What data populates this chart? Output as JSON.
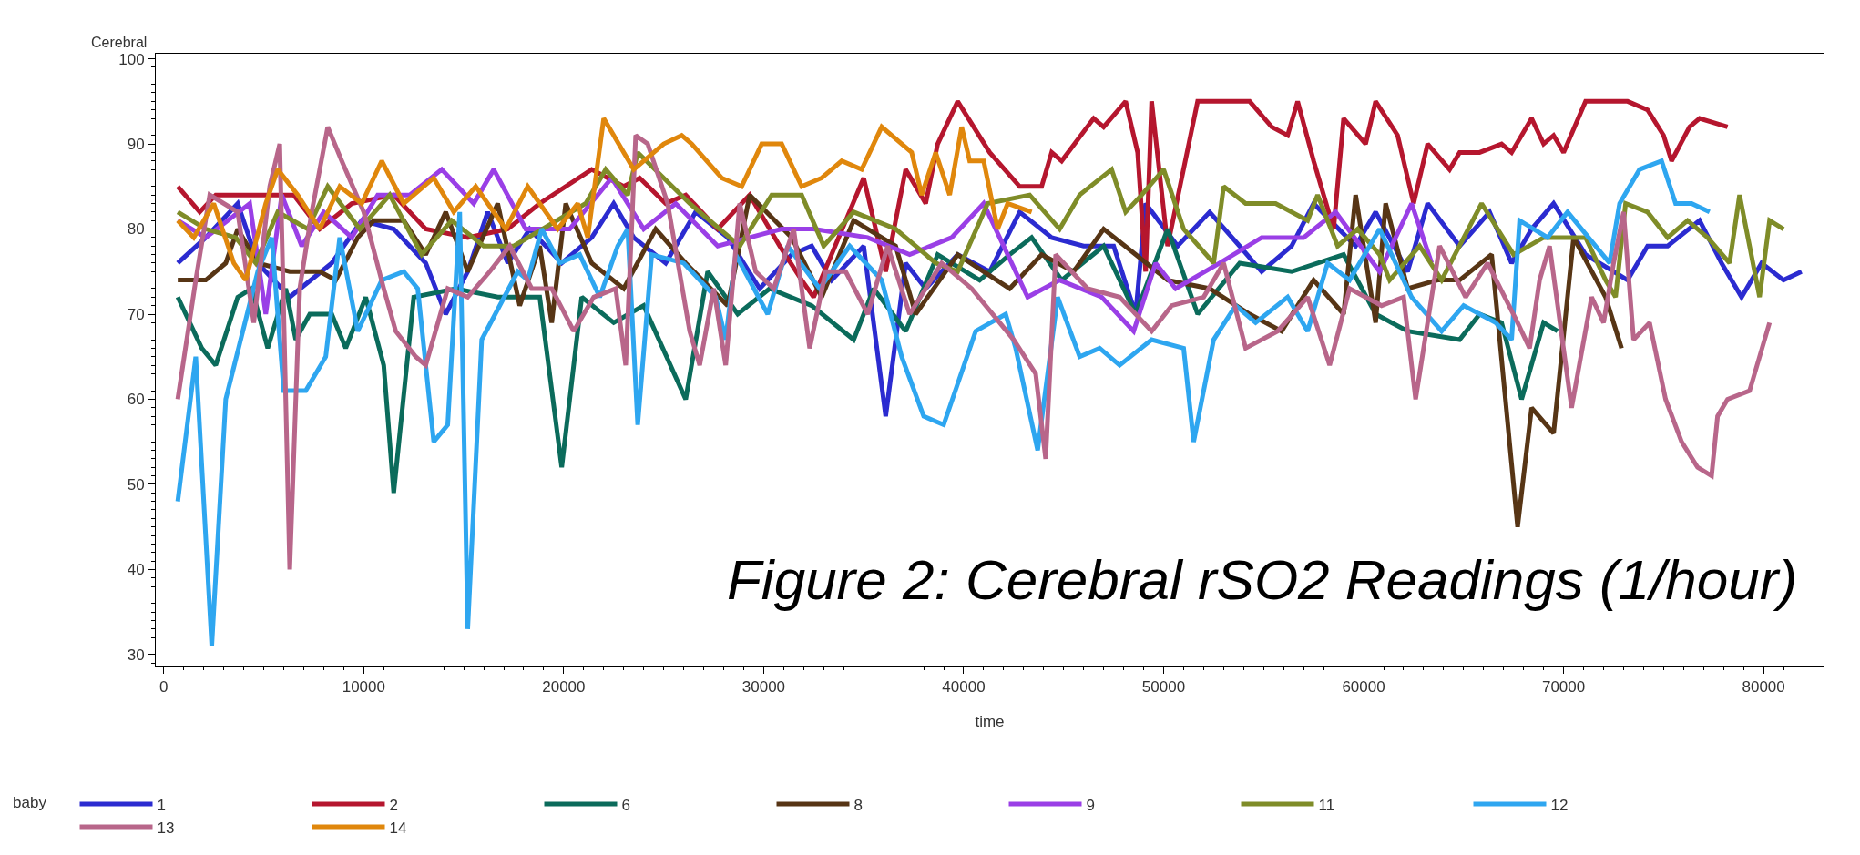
{
  "chart_data": {
    "type": "line",
    "xlabel": "time",
    "ylabel": "Cerebral",
    "legend_title": "baby",
    "legend": "bottom",
    "marker": "none",
    "line_style": "solid",
    "annotations": [
      "Figure 2: Cerebral rSO2 Readings (1/hour)"
    ],
    "xlim": [
      -400,
      83000
    ],
    "xticks": [
      0,
      10000,
      20000,
      30000,
      40000,
      50000,
      60000,
      70000,
      80000
    ],
    "ylim": [
      28.7,
      100.6
    ],
    "yticks": [
      30,
      40,
      50,
      60,
      70,
      80,
      90,
      100
    ],
    "series": [
      {
        "name": "1",
        "color": "#2b2bd0",
        "x": [
          700,
          2100,
          3700,
          4700,
          6300,
          8400,
          9900,
          11500,
          13100,
          14100,
          15200,
          16200,
          17200,
          18300,
          19900,
          21400,
          22500,
          23500,
          25100,
          26600,
          28200,
          29800,
          31400,
          32400,
          33400,
          35000,
          36100,
          37100,
          38100,
          39700,
          41300,
          42800,
          44400,
          46000,
          47500,
          48600,
          49100,
          50700,
          52300,
          53800,
          54900,
          56400,
          57500,
          59600,
          60600,
          62200,
          63200,
          64800,
          66300,
          67400,
          68400,
          69500,
          71100,
          73200,
          74200,
          75200,
          76800,
          77900,
          78900,
          79900,
          81000,
          81900
        ],
        "values": [
          76,
          79,
          83,
          76,
          72,
          76,
          81,
          80,
          76,
          70,
          75,
          82,
          76,
          80,
          76,
          79,
          83,
          79,
          76,
          82,
          79,
          73,
          77,
          78,
          74,
          78,
          58,
          76,
          73,
          77,
          75,
          82,
          79,
          78,
          78,
          70,
          83,
          78,
          82,
          78,
          75,
          78,
          83,
          78,
          82,
          75,
          83,
          78,
          82,
          76,
          80,
          83,
          77,
          74,
          78,
          78,
          81,
          76,
          72,
          76,
          74,
          75
        ]
      },
      {
        "name": "2",
        "color": "#b5162e",
        "x": [
          700,
          1800,
          2600,
          6500,
          7800,
          9400,
          11500,
          13100,
          15200,
          17200,
          18800,
          21400,
          23000,
          23800,
          25100,
          26100,
          27700,
          29300,
          30800,
          31900,
          32500,
          35000,
          36100,
          37100,
          38100,
          38700,
          39700,
          41300,
          42800,
          43900,
          44400,
          44900,
          46500,
          47000,
          48100,
          48700,
          49100,
          49400,
          50200,
          51700,
          54300,
          55400,
          56200,
          56700,
          57500,
          58500,
          59000,
          60100,
          60600,
          61700,
          62500,
          63200,
          64300,
          64800,
          65800,
          66900,
          67400,
          68400,
          69000,
          69500,
          70000,
          71100,
          73200,
          74200,
          75000,
          75400,
          76300,
          76800,
          78200
        ],
        "values": [
          85,
          82,
          84,
          84,
          80,
          83,
          84,
          80,
          79,
          80,
          83,
          87,
          85,
          86,
          83,
          84,
          80,
          84,
          78,
          74,
          72,
          86,
          75,
          87,
          83,
          90,
          95,
          89,
          85,
          85,
          89,
          88,
          93,
          92,
          95,
          89,
          75,
          95,
          78,
          95,
          95,
          92,
          91,
          95,
          88,
          80,
          93,
          90,
          95,
          91,
          83,
          90,
          87,
          89,
          89,
          90,
          89,
          93,
          90,
          91,
          89,
          95,
          95,
          94,
          91,
          88,
          92,
          93,
          92
        ]
      },
      {
        "name": "6",
        "color": "#0b6b5b",
        "x": [
          700,
          1900,
          2600,
          3700,
          4400,
          5200,
          6100,
          6600,
          7300,
          8400,
          9100,
          10100,
          11000,
          11500,
          12500,
          14600,
          16700,
          18800,
          19900,
          20900,
          22500,
          24000,
          26100,
          27200,
          28700,
          30300,
          32400,
          34500,
          35500,
          37100,
          38700,
          40800,
          42300,
          43400,
          44900,
          47000,
          48600,
          50200,
          51700,
          53800,
          56400,
          59000,
          60600,
          62200,
          64800,
          65800,
          66900,
          67900,
          69000,
          69700
        ],
        "values": [
          72,
          66,
          64,
          72,
          73,
          66,
          73,
          67,
          70,
          70,
          66,
          72,
          64,
          49,
          72,
          73,
          72,
          72,
          52,
          72,
          69,
          71,
          60,
          75,
          70,
          73,
          71,
          67,
          73,
          68,
          77,
          74,
          77,
          79,
          74,
          78,
          70,
          80,
          70,
          76,
          75,
          77,
          70,
          68,
          67,
          70,
          69,
          60,
          69,
          68
        ]
      },
      {
        "name": "8",
        "color": "#573515",
        "x": [
          700,
          2100,
          3100,
          3700,
          4700,
          6300,
          7800,
          8600,
          9700,
          10500,
          12000,
          13100,
          14100,
          15200,
          16700,
          17800,
          18800,
          19400,
          20100,
          21400,
          23000,
          24600,
          26100,
          28200,
          29300,
          31400,
          32900,
          34500,
          36600,
          37600,
          39700,
          42300,
          43900,
          45500,
          47000,
          48600,
          50200,
          52300,
          54300,
          55900,
          57500,
          59000,
          59600,
          60600,
          61100,
          62200,
          63700,
          64800,
          66400,
          67700,
          68400,
          69500,
          70500,
          72100,
          72900
        ],
        "values": [
          74,
          74,
          76,
          80,
          76,
          75,
          75,
          74,
          79,
          81,
          81,
          77,
          82,
          75,
          83,
          71,
          78,
          69,
          83,
          76,
          73,
          80,
          76,
          71,
          84,
          79,
          72,
          81,
          78,
          70,
          77,
          73,
          77,
          75,
          80,
          77,
          74,
          73,
          70,
          68,
          74,
          70,
          84,
          69,
          83,
          73,
          74,
          74,
          77,
          45,
          59,
          56,
          79,
          72,
          66
        ]
      },
      {
        "name": "9",
        "color": "#9a3fe6",
        "x": [
          700,
          2100,
          4300,
          5100,
          5900,
          6900,
          8000,
          9400,
          10700,
          12300,
          13900,
          15500,
          16500,
          18100,
          20300,
          22400,
          24000,
          25600,
          27700,
          29300,
          30900,
          32500,
          35200,
          37300,
          39400,
          41000,
          43200,
          44800,
          46900,
          48500,
          49600,
          50600,
          52800,
          54900,
          57000,
          58600,
          60800,
          62400,
          63400
        ],
        "values": [
          81,
          79,
          83,
          70,
          84,
          78,
          82,
          79,
          84,
          84,
          87,
          83,
          87,
          80,
          80,
          86,
          80,
          83,
          78,
          79,
          80,
          80,
          79,
          77,
          79,
          83,
          72,
          74,
          72,
          68,
          76,
          73,
          76,
          79,
          79,
          82,
          75,
          83,
          76
        ]
      },
      {
        "name": "11",
        "color": "#7f8c28",
        "x": [
          700,
          2100,
          3600,
          4600,
          5700,
          7200,
          8200,
          9800,
          11300,
          12900,
          14400,
          16000,
          17500,
          21100,
          22100,
          23200,
          23700,
          26300,
          28800,
          30400,
          31900,
          33000,
          34500,
          36600,
          38600,
          39700,
          41200,
          43300,
          44800,
          45800,
          47400,
          48100,
          48900,
          50000,
          51000,
          52500,
          53000,
          54100,
          55600,
          57200,
          57700,
          58700,
          59700,
          60800,
          61300,
          62800,
          63900,
          65900,
          67500,
          69000,
          71100,
          72100,
          72600,
          73100,
          74200,
          75200,
          76200,
          77200,
          78300,
          78800,
          79800,
          80300,
          81000
        ],
        "values": [
          82,
          80,
          79,
          76,
          82,
          80,
          85,
          80,
          84,
          77,
          81,
          78,
          78,
          83,
          87,
          84,
          89,
          83,
          78,
          84,
          84,
          78,
          82,
          80,
          76,
          75,
          83,
          84,
          80,
          84,
          87,
          82,
          84,
          87,
          80,
          76,
          85,
          83,
          83,
          81,
          84,
          78,
          80,
          77,
          74,
          78,
          74,
          83,
          77,
          79,
          79,
          74,
          72,
          83,
          82,
          79,
          81,
          79,
          76,
          84,
          72,
          81,
          80
        ]
      },
      {
        "name": "12",
        "color": "#2ea6f0",
        "x": [
          700,
          1600,
          2400,
          3100,
          4700,
          5400,
          6000,
          7100,
          8100,
          8800,
          9700,
          10900,
          12000,
          12700,
          13500,
          14200,
          14800,
          15200,
          15900,
          17700,
          18200,
          18900,
          19800,
          20800,
          21800,
          22700,
          23200,
          23700,
          24400,
          26000,
          27600,
          28100,
          28600,
          30200,
          31200,
          32800,
          34300,
          35900,
          36900,
          38000,
          39000,
          40600,
          42100,
          42600,
          43700,
          44700,
          45800,
          46800,
          47800,
          49400,
          51000,
          51500,
          52500,
          53600,
          54600,
          56200,
          57200,
          58200,
          59300,
          60800,
          62400,
          63900,
          65000,
          66600,
          67400,
          67800,
          69200,
          70200,
          72300,
          72800,
          73800,
          74900,
          75600,
          76400,
          77300
        ],
        "values": [
          48,
          65,
          31,
          60,
          75,
          79,
          61,
          61,
          65,
          79,
          68,
          74,
          75,
          73,
          55,
          57,
          82,
          33,
          67,
          75,
          74,
          80,
          76,
          77,
          72,
          78,
          80,
          57,
          77,
          76,
          72,
          67,
          77,
          70,
          78,
          73,
          78,
          74,
          65,
          58,
          57,
          68,
          70,
          66,
          54,
          72,
          65,
          66,
          64,
          67,
          66,
          55,
          67,
          71,
          69,
          72,
          68,
          76,
          74,
          80,
          72,
          68,
          71,
          69,
          67,
          81,
          79,
          82,
          76,
          83,
          87,
          88,
          83,
          83,
          82
        ]
      },
      {
        "name": "13",
        "color": "#b8668a",
        "x": [
          700,
          1600,
          2300,
          3700,
          4500,
          5300,
          5800,
          6300,
          6800,
          7400,
          8200,
          8900,
          10000,
          11000,
          11600,
          12600,
          13100,
          14200,
          15200,
          16300,
          17300,
          18400,
          19400,
          20500,
          21500,
          22600,
          23100,
          23600,
          24200,
          25200,
          26300,
          26800,
          27500,
          28100,
          28800,
          29600,
          30500,
          31500,
          32300,
          33100,
          34100,
          35200,
          36200,
          37300,
          38900,
          40400,
          42500,
          43600,
          44100,
          44600,
          46200,
          47800,
          49400,
          50400,
          52000,
          53000,
          54100,
          55700,
          57200,
          58300,
          59300,
          60900,
          62000,
          62600,
          63800,
          65100,
          66200,
          67700,
          68300,
          68800,
          69300,
          70400,
          71400,
          72000,
          72500,
          73000,
          73500,
          74300,
          75100,
          75900,
          76700,
          77400,
          77700,
          78200,
          79300,
          80300
        ],
        "values": [
          60,
          74,
          84,
          82,
          69,
          85,
          90,
          40,
          73,
          82,
          92,
          88,
          82,
          73,
          68,
          65,
          64,
          73,
          72,
          75,
          78,
          73,
          73,
          68,
          72,
          73,
          64,
          91,
          90,
          83,
          68,
          64,
          73,
          64,
          83,
          75,
          73,
          80,
          66,
          75,
          75,
          70,
          78,
          70,
          76,
          73,
          67,
          63,
          53,
          77,
          73,
          72,
          68,
          71,
          72,
          76,
          66,
          68,
          72,
          64,
          73,
          71,
          72,
          60,
          78,
          72,
          76,
          69,
          66,
          74,
          78,
          59,
          72,
          69,
          76,
          82,
          67,
          69,
          60,
          55,
          52,
          51,
          58,
          60,
          61,
          69
        ]
      },
      {
        "name": "14",
        "color": "#e0870c",
        "x": [
          700,
          1500,
          2500,
          3500,
          4100,
          5100,
          5700,
          6700,
          7800,
          8800,
          9900,
          10900,
          12000,
          13500,
          14500,
          15600,
          17100,
          18200,
          19700,
          20700,
          21200,
          22000,
          23500,
          25000,
          25900,
          26400,
          27900,
          28900,
          29900,
          30900,
          31900,
          32900,
          33900,
          34900,
          35900,
          37400,
          37900,
          38600,
          39300,
          39900,
          40300,
          41000,
          41700,
          42200,
          43400
        ],
        "values": [
          81,
          79,
          83,
          76,
          74,
          83,
          87,
          84,
          80,
          85,
          83,
          88,
          83,
          86,
          82,
          85,
          80,
          85,
          80,
          83,
          79,
          93,
          87,
          90,
          91,
          90,
          86,
          85,
          90,
          90,
          85,
          86,
          88,
          87,
          92,
          89,
          84,
          89,
          84,
          92,
          88,
          88,
          80,
          83,
          82
        ]
      }
    ]
  }
}
